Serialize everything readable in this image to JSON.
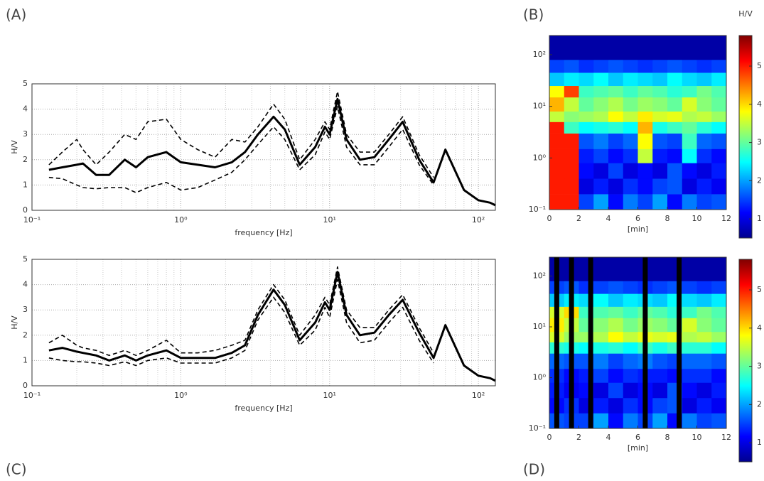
{
  "chart_data": [
    {
      "type": "line",
      "panel_label": "(A)",
      "xlabel": "frequency [Hz]",
      "ylabel": "H/V",
      "xlog": true,
      "grid": true,
      "xlim": [
        0.1,
        130
      ],
      "xticks": [
        {
          "value": 0.1,
          "label": "10⁻¹"
        },
        {
          "value": 1,
          "label": "10⁰"
        },
        {
          "value": 10,
          "label": "10¹"
        },
        {
          "value": 100,
          "label": "10²"
        }
      ],
      "ylim": [
        0,
        5
      ],
      "yticks": [
        0,
        1,
        2,
        3,
        4,
        5
      ],
      "x": [
        0.13,
        0.16,
        0.2,
        0.22,
        0.27,
        0.33,
        0.42,
        0.5,
        0.6,
        0.8,
        1.0,
        1.3,
        1.7,
        2.2,
        2.7,
        3.3,
        4.2,
        5,
        6.3,
        8,
        9.3,
        10,
        11.3,
        13,
        16,
        20,
        25,
        31,
        40,
        50,
        60,
        80,
        100,
        120,
        130
      ],
      "series": [
        {
          "color": "#000000",
          "style": "solid",
          "values": [
            1.6,
            1.7,
            1.8,
            1.85,
            1.4,
            1.4,
            2.0,
            1.7,
            2.1,
            2.3,
            1.9,
            1.8,
            1.7,
            1.9,
            2.3,
            3.0,
            3.7,
            3.2,
            1.8,
            2.5,
            3.3,
            3.0,
            4.4,
            2.8,
            2.0,
            2.1,
            2.8,
            3.5,
            2.0,
            1.1,
            2.4,
            0.8,
            0.4,
            0.3,
            0.2
          ]
        },
        {
          "color": "#000000",
          "style": "dashed",
          "values": [
            1.8,
            2.3,
            2.8,
            2.4,
            1.8,
            2.3,
            3.0,
            2.8,
            3.5,
            3.6,
            2.8,
            2.4,
            2.1,
            2.8,
            2.7,
            3.3,
            4.2,
            3.6,
            2.0,
            2.8,
            3.5,
            3.2,
            4.7,
            3.0,
            2.3,
            2.3,
            3.0,
            3.7,
            2.2,
            1.3,
            null,
            null,
            null,
            null,
            null
          ]
        },
        {
          "color": "#000000",
          "style": "dashed",
          "values": [
            1.3,
            1.25,
            1.0,
            0.9,
            0.85,
            0.9,
            0.9,
            0.7,
            0.9,
            1.1,
            0.8,
            0.9,
            1.2,
            1.5,
            2.0,
            2.6,
            3.3,
            2.8,
            1.6,
            2.2,
            3.1,
            2.8,
            4.1,
            2.5,
            1.8,
            1.8,
            2.5,
            3.2,
            1.8,
            1.0,
            null,
            null,
            null,
            null,
            null
          ]
        }
      ]
    },
    {
      "type": "heatmap",
      "panel_label": "(B)",
      "xlabel": "[min]",
      "colorbar_label": "H/V",
      "ylog": true,
      "xlim": [
        0,
        12
      ],
      "xticks": [
        0,
        2,
        4,
        6,
        8,
        10,
        12
      ],
      "ylim": [
        0.1,
        235
      ],
      "yticks": [
        {
          "value": 0.1,
          "label": "10⁻¹"
        },
        {
          "value": 1,
          "label": "10⁰"
        },
        {
          "value": 10,
          "label": "10¹"
        },
        {
          "value": 100,
          "label": "10²"
        }
      ],
      "clim": [
        0.5,
        5.8
      ],
      "cticks": [
        1,
        2,
        3,
        4,
        5
      ],
      "xbins": [
        0,
        1,
        2,
        3,
        4,
        5,
        6,
        7,
        8,
        9,
        10,
        11,
        12
      ],
      "ybins": [
        0.1,
        0.2,
        0.4,
        0.8,
        1.5,
        3,
        5,
        8,
        15,
        25,
        45,
        80,
        235
      ],
      "z": [
        [
          5.0,
          5.0,
          1.5,
          2.0,
          1.2,
          1.8,
          1.5,
          2.0,
          1.2,
          1.8,
          1.5,
          1.6
        ],
        [
          5.0,
          5.0,
          1.0,
          1.3,
          1.0,
          1.4,
          1.2,
          1.5,
          1.6,
          1.0,
          1.3,
          1.1
        ],
        [
          5.0,
          5.0,
          1.2,
          1.0,
          1.5,
          1.0,
          1.2,
          1.0,
          1.6,
          1.2,
          1.0,
          1.3
        ],
        [
          5.0,
          5.0,
          1.3,
          1.5,
          1.2,
          1.4,
          3.5,
          1.3,
          1.2,
          2.5,
          1.4,
          1.2
        ],
        [
          5.0,
          5.0,
          1.6,
          1.8,
          1.5,
          1.7,
          3.8,
          1.6,
          1.5,
          2.8,
          1.7,
          1.6
        ],
        [
          5.0,
          2.8,
          2.5,
          2.6,
          2.7,
          2.5,
          4.2,
          2.6,
          2.8,
          3.0,
          2.7,
          2.5
        ],
        [
          3.5,
          3.2,
          3.3,
          3.4,
          3.8,
          3.5,
          3.9,
          3.6,
          3.7,
          3.4,
          3.5,
          3.3
        ],
        [
          4.2,
          3.5,
          3.0,
          3.2,
          3.4,
          3.1,
          3.3,
          3.2,
          3.0,
          3.6,
          3.2,
          3.0
        ],
        [
          3.8,
          4.8,
          2.8,
          2.9,
          3.0,
          2.8,
          3.0,
          2.9,
          2.7,
          2.8,
          3.1,
          2.9
        ],
        [
          2.2,
          2.4,
          2.3,
          2.5,
          2.2,
          2.4,
          2.3,
          2.2,
          2.5,
          2.3,
          2.2,
          2.4
        ],
        [
          1.5,
          1.6,
          1.4,
          1.5,
          1.6,
          1.5,
          1.4,
          1.5,
          1.6,
          1.5,
          1.4,
          1.5
        ],
        [
          0.7,
          0.7,
          0.7,
          0.7,
          0.7,
          0.7,
          0.7,
          0.7,
          0.7,
          0.7,
          0.7,
          0.7
        ]
      ]
    },
    {
      "type": "line",
      "panel_label": "(C)",
      "xlabel": "frequency [Hz]",
      "ylabel": "H/V",
      "xlog": true,
      "grid": true,
      "xlim": [
        0.1,
        130
      ],
      "xticks": [
        {
          "value": 0.1,
          "label": "10⁻¹"
        },
        {
          "value": 1,
          "label": "10⁰"
        },
        {
          "value": 10,
          "label": "10¹"
        },
        {
          "value": 100,
          "label": "10²"
        }
      ],
      "ylim": [
        0,
        5
      ],
      "yticks": [
        0,
        1,
        2,
        3,
        4,
        5
      ],
      "x": [
        0.13,
        0.16,
        0.2,
        0.22,
        0.27,
        0.33,
        0.42,
        0.5,
        0.6,
        0.8,
        1.0,
        1.3,
        1.7,
        2.2,
        2.7,
        3.3,
        4.2,
        5,
        6.3,
        8,
        9.3,
        10,
        11.3,
        13,
        16,
        20,
        25,
        31,
        40,
        50,
        60,
        80,
        100,
        120,
        130
      ],
      "series": [
        {
          "color": "#000000",
          "style": "solid",
          "values": [
            1.4,
            1.5,
            1.35,
            1.3,
            1.2,
            1.0,
            1.2,
            1.0,
            1.2,
            1.4,
            1.1,
            1.1,
            1.1,
            1.3,
            1.6,
            2.8,
            3.8,
            3.2,
            1.8,
            2.5,
            3.3,
            3.0,
            4.5,
            2.8,
            2.0,
            2.1,
            2.8,
            3.4,
            2.1,
            1.1,
            2.4,
            0.8,
            0.4,
            0.3,
            0.2
          ]
        },
        {
          "color": "#000000",
          "style": "dashed",
          "values": [
            1.7,
            2.0,
            1.6,
            1.5,
            1.4,
            1.2,
            1.4,
            1.2,
            1.4,
            1.8,
            1.3,
            1.3,
            1.4,
            1.6,
            1.8,
            3.0,
            4.0,
            3.4,
            2.0,
            2.8,
            3.5,
            3.2,
            4.7,
            3.0,
            2.3,
            2.3,
            3.0,
            3.6,
            2.3,
            1.3,
            null,
            null,
            null,
            null,
            null
          ]
        },
        {
          "color": "#000000",
          "style": "dashed",
          "values": [
            1.1,
            1.0,
            0.95,
            0.95,
            0.9,
            0.8,
            0.95,
            0.8,
            1.0,
            1.1,
            0.9,
            0.9,
            0.9,
            1.1,
            1.4,
            2.6,
            3.5,
            2.9,
            1.6,
            2.2,
            3.1,
            2.7,
            4.2,
            2.5,
            1.7,
            1.8,
            2.5,
            3.1,
            1.8,
            0.9,
            null,
            null,
            null,
            null,
            null
          ]
        }
      ]
    },
    {
      "type": "heatmap",
      "panel_label": "(D)",
      "xlabel": "[min]",
      "ylog": true,
      "xlim": [
        0,
        12
      ],
      "xticks": [
        0,
        2,
        4,
        6,
        8,
        10,
        12
      ],
      "ylim": [
        0.1,
        235
      ],
      "yticks": [
        {
          "value": 0.1,
          "label": "10⁻¹"
        },
        {
          "value": 1,
          "label": "10⁰"
        },
        {
          "value": 10,
          "label": "10¹"
        },
        {
          "value": 100,
          "label": "10²"
        }
      ],
      "clim": [
        0.5,
        5.8
      ],
      "cticks": [
        1,
        2,
        3,
        4,
        5
      ],
      "rejected_windows": [
        0.5,
        1.5,
        2.8,
        6.5,
        8.8
      ],
      "xbins": [
        0,
        1,
        2,
        3,
        4,
        5,
        6,
        7,
        8,
        9,
        10,
        11,
        12
      ],
      "ybins": [
        0.1,
        0.2,
        0.4,
        0.8,
        1.5,
        3,
        5,
        8,
        15,
        25,
        45,
        80,
        235
      ],
      "z": [
        [
          1.6,
          1.5,
          1.5,
          2.0,
          1.2,
          1.8,
          1.5,
          2.0,
          1.2,
          1.8,
          1.5,
          1.6
        ],
        [
          1.2,
          1.4,
          1.0,
          1.3,
          1.0,
          1.4,
          1.2,
          1.5,
          1.6,
          1.0,
          1.3,
          1.1
        ],
        [
          1.3,
          1.1,
          1.2,
          1.0,
          1.5,
          1.0,
          1.2,
          1.0,
          1.6,
          1.2,
          1.0,
          1.3
        ],
        [
          1.4,
          1.2,
          1.3,
          1.5,
          1.2,
          1.4,
          1.3,
          1.3,
          1.2,
          1.4,
          1.4,
          1.2
        ],
        [
          1.7,
          1.6,
          1.6,
          1.8,
          1.5,
          1.7,
          1.8,
          1.6,
          1.5,
          1.7,
          1.7,
          1.6
        ],
        [
          2.7,
          2.6,
          2.5,
          2.6,
          2.7,
          2.5,
          2.8,
          2.6,
          2.8,
          2.7,
          2.7,
          2.5
        ],
        [
          3.6,
          3.3,
          3.3,
          3.4,
          3.8,
          3.5,
          3.7,
          3.6,
          3.7,
          3.4,
          3.5,
          3.3
        ],
        [
          3.9,
          3.5,
          3.0,
          3.2,
          3.4,
          3.1,
          3.3,
          3.2,
          3.0,
          3.6,
          3.2,
          3.0
        ],
        [
          3.6,
          4.0,
          2.8,
          2.9,
          3.0,
          2.8,
          3.0,
          2.9,
          2.7,
          2.8,
          3.1,
          2.9
        ],
        [
          2.2,
          2.4,
          2.3,
          2.5,
          2.2,
          2.4,
          2.3,
          2.2,
          2.5,
          2.3,
          2.2,
          2.4
        ],
        [
          1.5,
          1.6,
          1.4,
          1.5,
          1.6,
          1.5,
          1.4,
          1.5,
          1.6,
          1.5,
          1.4,
          1.5
        ],
        [
          0.7,
          0.7,
          0.7,
          0.7,
          0.7,
          0.7,
          0.7,
          0.7,
          0.7,
          0.7,
          0.7,
          0.7
        ]
      ]
    }
  ]
}
